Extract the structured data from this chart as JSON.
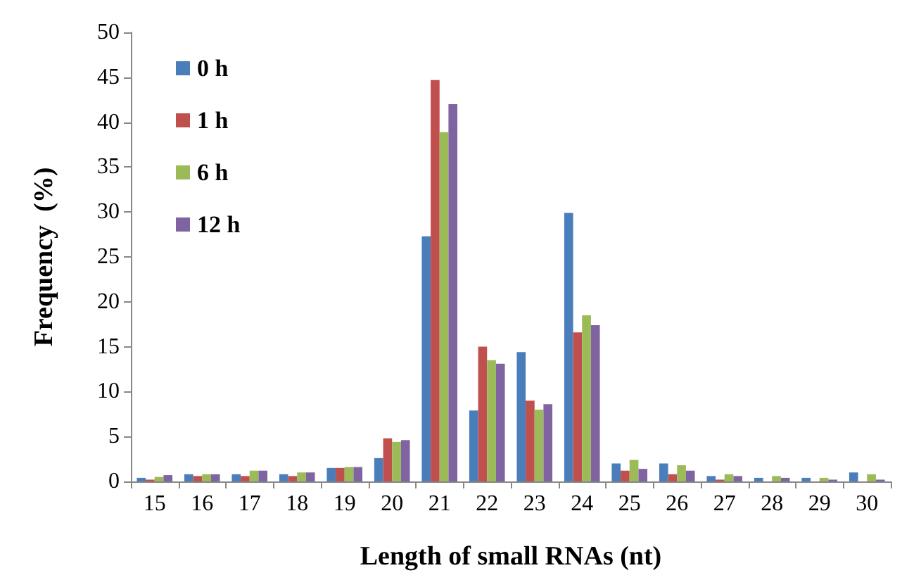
{
  "chart_data": {
    "type": "bar",
    "xlabel": "Length of small RNAs (nt)",
    "ylabel": "Frequency  (%)",
    "categories": [
      "15",
      "16",
      "17",
      "18",
      "19",
      "20",
      "21",
      "22",
      "23",
      "24",
      "25",
      "26",
      "27",
      "28",
      "29",
      "30"
    ],
    "series": [
      {
        "name": "0 h",
        "color": "#4a7ebb",
        "values": [
          0.4,
          0.8,
          0.8,
          0.8,
          1.5,
          2.6,
          27.3,
          7.9,
          14.4,
          29.9,
          2,
          2,
          0.6,
          0.4,
          0.4,
          1
        ]
      },
      {
        "name": "1 h",
        "color": "#c0504d",
        "values": [
          0.2,
          0.6,
          0.6,
          0.6,
          1.5,
          4.8,
          44.7,
          15,
          9,
          16.6,
          1.2,
          0.8,
          0.2,
          0,
          0,
          0
        ]
      },
      {
        "name": "6 h",
        "color": "#9bbb59",
        "values": [
          0.5,
          0.8,
          1.2,
          1,
          1.6,
          4.4,
          38.9,
          13.5,
          8,
          18.5,
          2.4,
          1.8,
          0.8,
          0.6,
          0.4,
          0.8
        ]
      },
      {
        "name": "12 h",
        "color": "#8064a2",
        "values": [
          0.7,
          0.8,
          1.2,
          1,
          1.6,
          4.6,
          42,
          13.1,
          8.6,
          17.4,
          1.4,
          1.2,
          0.6,
          0.4,
          0.2,
          0.2
        ]
      }
    ],
    "ylim": [
      0,
      50
    ],
    "yticks": [
      0,
      5,
      10,
      15,
      20,
      25,
      30,
      35,
      40,
      45,
      50
    ],
    "grid": false,
    "legend": "top left"
  }
}
